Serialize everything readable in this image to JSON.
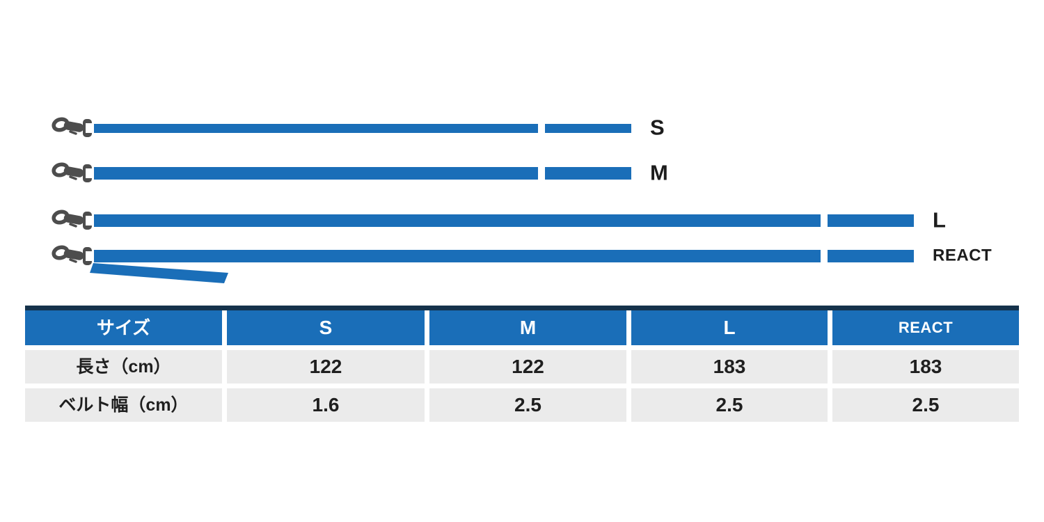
{
  "diagram": {
    "leashes": [
      {
        "label": "S",
        "length_cm": 122,
        "belt_width_cm": 1.6,
        "has_tail": false
      },
      {
        "label": "M",
        "length_cm": 122,
        "belt_width_cm": 2.5,
        "has_tail": false
      },
      {
        "label": "L",
        "length_cm": 183,
        "belt_width_cm": 2.5,
        "has_tail": false
      },
      {
        "label": "REACT",
        "length_cm": 183,
        "belt_width_cm": 2.5,
        "has_tail": true
      }
    ]
  },
  "table": {
    "columns": [
      "サイズ",
      "S",
      "M",
      "L",
      "REACT"
    ],
    "rows": [
      {
        "label": "長さ（cm）",
        "values": [
          "122",
          "122",
          "183",
          "183"
        ]
      },
      {
        "label": "ベルト幅（cm）",
        "values": [
          "1.6",
          "2.5",
          "2.5",
          "2.5"
        ]
      }
    ]
  },
  "colors": {
    "bar_blue": "#1a6eb8",
    "header_blue": "#1a6eb8",
    "header_top_line": "#15324b",
    "cell_gray": "#ebebeb",
    "clasp_gray": "#4d4d4d",
    "label_text": "#1d1d1d"
  }
}
